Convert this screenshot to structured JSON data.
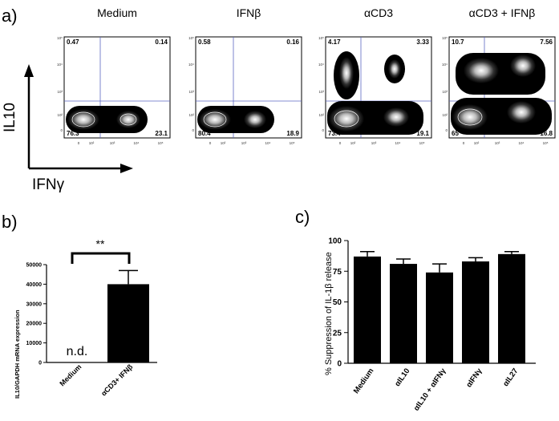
{
  "panel_a": {
    "letter": "a)",
    "y_axis_label": "IL10",
    "x_axis_label": "IFNγ",
    "tick_labels_x": [
      "0",
      "10²",
      "10³",
      "10⁴",
      "10⁵"
    ],
    "tick_labels_y": [
      "10⁵",
      "10⁴",
      "10³",
      "10²",
      "0"
    ],
    "plots": [
      {
        "title": "Medium",
        "ul": "0.47",
        "ur": "0.14",
        "ll": "76.3",
        "lr": "23.1"
      },
      {
        "title": "IFNβ",
        "ul": "0.58",
        "ur": "0.16",
        "ll": "80.4",
        "lr": "18.9"
      },
      {
        "title": "αCD3",
        "ul": "4.17",
        "ur": "3.33",
        "ll": "73.4",
        "lr": "19.1"
      },
      {
        "title": "αCD3 + IFNβ",
        "ul": "10.7",
        "ur": "7.56",
        "ll": "65",
        "lr": "16.8"
      }
    ]
  },
  "chart_data": [
    {
      "type": "bar",
      "panel": "b)",
      "ylabel": "IL10/GAPDH mRNA expression",
      "categories": [
        "Medium",
        "αCD3+ IFNβ"
      ],
      "values": [
        0,
        40000
      ],
      "errors": [
        0,
        7000
      ],
      "ylim": [
        0,
        50000
      ],
      "yticks": [
        "0",
        "10000",
        "20000",
        "30000",
        "40000",
        "50000"
      ],
      "annotation_nd": "n.d.",
      "significance": "**"
    },
    {
      "type": "bar",
      "panel": "c)",
      "ylabel": "% Suppression of IL-1β release",
      "categories": [
        "Medium",
        "αIL10",
        "αIL10 + αIFNγ",
        "αIFNγ",
        "αIL27"
      ],
      "values": [
        87,
        81,
        74,
        83,
        89
      ],
      "errors": [
        4,
        4,
        7,
        3,
        2
      ],
      "ylim": [
        0,
        100
      ],
      "yticks": [
        "0",
        "25",
        "50",
        "75",
        "100"
      ]
    }
  ]
}
